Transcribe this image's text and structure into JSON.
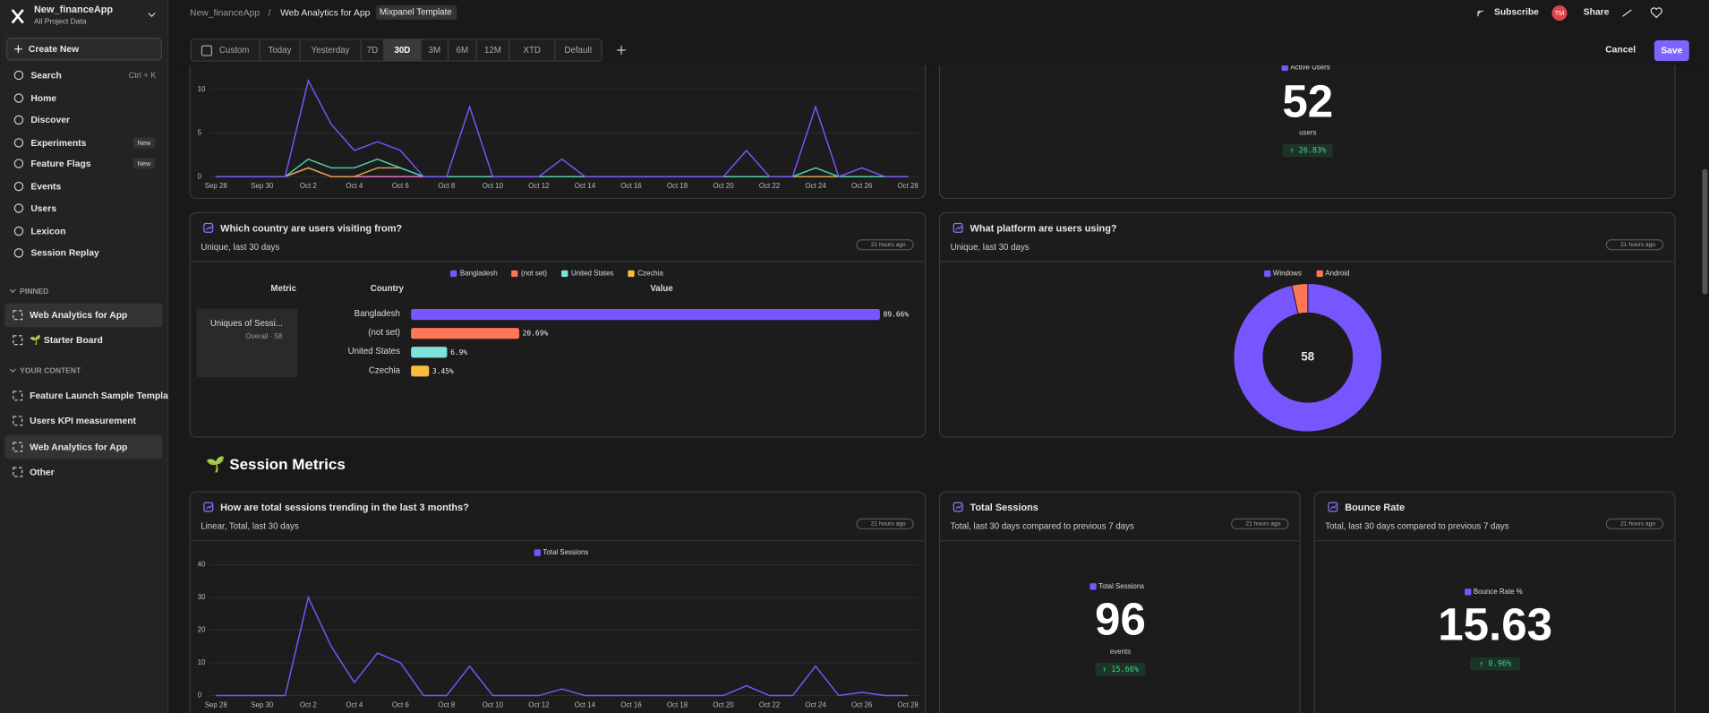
{
  "sidebar": {
    "workspace": "New_financeApp",
    "scope": "All Project Data",
    "create": "Create New",
    "nav": [
      {
        "label": "Search",
        "shortcut": "Ctrl + K"
      },
      {
        "label": "Home"
      },
      {
        "label": "Discover"
      },
      {
        "label": "Experiments",
        "badge": "New"
      },
      {
        "label": "Feature Flags",
        "badge": "New"
      },
      {
        "label": "Events"
      },
      {
        "label": "Users"
      },
      {
        "label": "Lexicon"
      },
      {
        "label": "Session Replay"
      }
    ],
    "pinned": {
      "heading": "PINNED",
      "items": [
        "Web Analytics for App",
        "🌱 Starter Board"
      ]
    },
    "content": {
      "heading": "YOUR CONTENT",
      "items": [
        "Feature Launch Sample Templa",
        "Users KPI measurement",
        "Web Analytics for App",
        "Other"
      ]
    }
  },
  "topbar": {
    "breadcrumb": [
      "New_financeApp",
      "/",
      "Web Analytics for App"
    ],
    "tag": "Mixpanel Template",
    "subscribe": "Subscribe",
    "avatar": "TM",
    "share": "Share"
  },
  "toolbar": {
    "ranges": [
      "Custom",
      "Today",
      "Yesterday",
      "7D",
      "30D",
      "3M",
      "6M",
      "12M",
      "XTD",
      "Default"
    ],
    "active": 4,
    "cancel": "Cancel",
    "save": "Save"
  },
  "section": "🌱 Session Metrics",
  "chart_data": [
    {
      "type": "line",
      "categories": [
        "Sep 28",
        null,
        "Sep 30",
        null,
        "Oct 2",
        null,
        "Oct 4",
        null,
        "Oct 6",
        null,
        "Oct 8",
        null,
        "Oct 10",
        null,
        "Oct 12",
        null,
        "Oct 14",
        null,
        "Oct 16",
        null,
        "Oct 18",
        null,
        "Oct 20",
        null,
        "Oct 22",
        null,
        "Oct 24",
        null,
        "Oct 26",
        null,
        "Oct 28"
      ],
      "series": [
        {
          "color": "#7856ff",
          "values": [
            0,
            0,
            0,
            0,
            11,
            6,
            3,
            4,
            3,
            0,
            0,
            8,
            0,
            0,
            0,
            2,
            0,
            0,
            0,
            0,
            0,
            0,
            0,
            3,
            0,
            0,
            8,
            0,
            1,
            0,
            0
          ]
        },
        {
          "color": "#4fd1b2",
          "values": [
            0,
            0,
            0,
            0,
            2,
            1,
            1,
            2,
            1,
            0,
            0,
            0,
            0,
            0,
            0,
            0,
            0,
            0,
            0,
            0,
            0,
            0,
            0,
            0,
            0,
            0,
            1,
            0,
            0,
            0,
            0
          ]
        },
        {
          "color": "#e0a34a",
          "values": [
            0,
            0,
            0,
            0,
            1,
            0,
            0,
            1,
            1,
            0,
            0,
            0,
            0,
            0,
            0,
            0,
            0,
            0,
            0,
            0,
            0,
            0,
            0,
            0,
            0,
            0,
            0,
            0,
            0,
            0,
            0
          ]
        },
        {
          "color": "#f07ad8",
          "values": [
            0,
            0,
            0,
            0,
            1,
            0,
            0,
            0,
            0,
            0,
            0,
            0,
            0,
            0,
            0,
            0,
            0,
            0,
            0,
            0,
            0,
            0,
            0,
            0,
            0,
            0,
            0,
            0,
            0,
            0,
            0
          ]
        }
      ],
      "ylim": [
        0,
        12
      ],
      "yticks": [
        0,
        5,
        10
      ],
      "grid": true
    },
    {
      "type": "bar",
      "title": "Which country are users visiting from?",
      "subtitle": "Unique, last 30 days",
      "updated": "21 hours ago",
      "columns": [
        "Metric",
        "Country",
        "Value"
      ],
      "metric_label": "Uniques of Sessi...",
      "metric_sub": "Overall · 58",
      "categories": [
        "Bangladesh",
        "(not set)",
        "United States",
        "Czechia"
      ],
      "values": [
        89.66,
        20.69,
        6.9,
        3.45
      ],
      "value_labels": [
        "89.66%",
        "20.69%",
        "6.9%",
        "3.45%"
      ],
      "colors": [
        "#7856ff",
        "#ff7557",
        "#80e1d9",
        "#f8bc3b"
      ],
      "xlim": [
        0,
        100
      ]
    },
    {
      "type": "pie",
      "title": "What platform are users using?",
      "subtitle": "Unique, last 30 days",
      "updated": "21 hours ago",
      "categories": [
        "Windows",
        "Android"
      ],
      "values": [
        56,
        2
      ],
      "colors": [
        "#7856ff",
        "#ff7557"
      ],
      "total": 58
    },
    {
      "type": "line",
      "title": "How are total sessions trending in the last 3 months?",
      "subtitle": "Linear, Total, last 30 days",
      "updated": "21 hours ago",
      "categories": [
        "Sep 28",
        null,
        "Sep 30",
        null,
        "Oct 2",
        null,
        "Oct 4",
        null,
        "Oct 6",
        null,
        "Oct 8",
        null,
        "Oct 10",
        null,
        "Oct 12",
        null,
        "Oct 14",
        null,
        "Oct 16",
        null,
        "Oct 18",
        null,
        "Oct 20",
        null,
        "Oct 22",
        null,
        "Oct 24",
        null,
        "Oct 26",
        null,
        "Oct 28"
      ],
      "series": [
        {
          "name": "Total Sessions",
          "color": "#7856ff",
          "values": [
            0,
            0,
            0,
            0,
            30,
            15,
            4,
            13,
            10,
            0,
            0,
            9,
            0,
            0,
            0,
            2,
            0,
            0,
            0,
            0,
            0,
            0,
            0,
            3,
            0,
            0,
            9,
            0,
            1,
            0,
            0
          ]
        }
      ],
      "ylim": [
        0,
        40
      ],
      "yticks": [
        0,
        10,
        20,
        30,
        40
      ],
      "grid": true
    }
  ],
  "cards": [
    {
      "legend": "Active Users",
      "value": 52,
      "unit": "users",
      "change": "↑ 26.83%"
    },
    {
      "title": "Total Sessions",
      "subtitle": "Total, last 30 days compared to previous 7 days",
      "updated": "21 hours ago",
      "legend": "Total Sessions",
      "value": 96,
      "unit": "events",
      "change": "↑ 15.66%"
    },
    {
      "title": "Bounce Rate",
      "subtitle": "Total, last 30 days compared to previous 7 days",
      "updated": "21 hours ago",
      "legend": "Bounce Rate %",
      "value": 15.63,
      "change": "↑ 0.96%"
    }
  ]
}
